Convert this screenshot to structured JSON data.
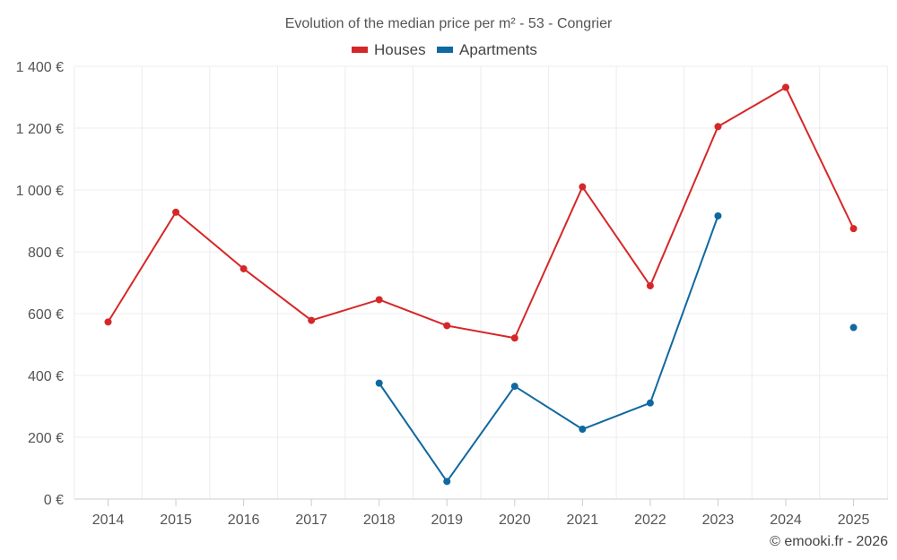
{
  "chart_data": {
    "type": "line",
    "title": "Evolution of the median price per m² - 53 - Congrier",
    "x": [
      "2014",
      "2015",
      "2016",
      "2017",
      "2018",
      "2019",
      "2020",
      "2021",
      "2022",
      "2023",
      "2024",
      "2025"
    ],
    "ylim": [
      0,
      1400
    ],
    "yticks": [
      0,
      200,
      400,
      600,
      800,
      1000,
      1200,
      1400
    ],
    "ytick_labels": [
      "0 €",
      "200 €",
      "400 €",
      "600 €",
      "800 €",
      "1 000 €",
      "1 200 €",
      "1 400 €"
    ],
    "grid": true,
    "legend_position": "top-center",
    "series": [
      {
        "name": "Houses",
        "color": "#d62728",
        "values": [
          573,
          928,
          745,
          578,
          645,
          561,
          521,
          1010,
          690,
          1205,
          1332,
          875
        ]
      },
      {
        "name": "Apartments",
        "color": "#1068a0",
        "values": [
          null,
          null,
          null,
          null,
          375,
          57,
          365,
          226,
          311,
          916,
          null,
          555
        ]
      }
    ],
    "credit": "© emooki.fr - 2026"
  }
}
